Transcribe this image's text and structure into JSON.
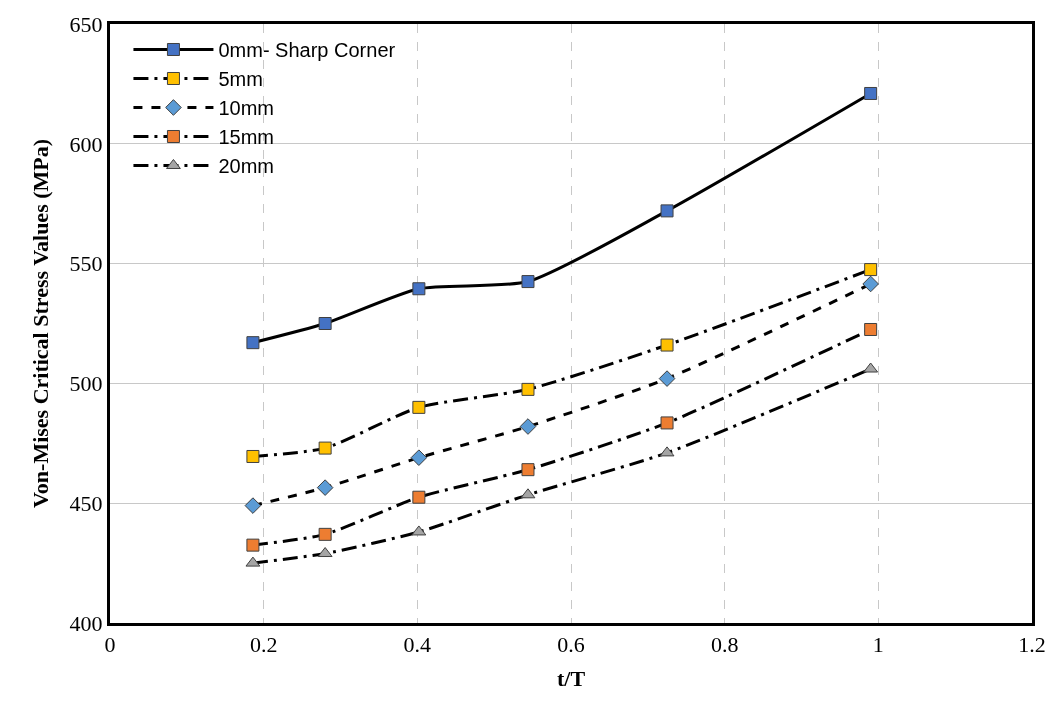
{
  "chart_data": {
    "type": "line",
    "xlabel": "t/T",
    "ylabel": "Von-Mises Critical Stress Values (MPa)",
    "x": [
      0.186,
      0.28,
      0.402,
      0.544,
      0.725,
      0.99
    ],
    "series": [
      {
        "name": "0mm- Sharp Corner",
        "color": "#4472c4",
        "marker": "square",
        "line_style": "solid",
        "values": [
          517,
          525,
          539.5,
          542.5,
          572,
          621
        ]
      },
      {
        "name": "5mm",
        "color": "#ffc000",
        "marker": "square",
        "line_style": "dashdot",
        "values": [
          469.5,
          473,
          490,
          497.5,
          516,
          547.5
        ]
      },
      {
        "name": "10mm",
        "color": "#5b9bd5",
        "marker": "diamond",
        "line_style": "dashed",
        "values": [
          449,
          456.5,
          469,
          482,
          502,
          541.5
        ]
      },
      {
        "name": "15mm",
        "color": "#ed7d31",
        "marker": "square",
        "line_style": "dashdot",
        "values": [
          432.5,
          437,
          452.5,
          464,
          483.5,
          522.5
        ]
      },
      {
        "name": "20mm",
        "color": "#a5a5a5",
        "marker": "triangle",
        "line_style": "dashdot",
        "values": [
          425,
          429,
          438,
          453.5,
          471,
          506
        ]
      }
    ],
    "xlim": [
      0,
      1.2
    ],
    "xticks": [
      0,
      0.2,
      0.4,
      0.6,
      0.8,
      1,
      1.2
    ],
    "ylim": [
      400,
      650
    ],
    "yticks": [
      400,
      450,
      500,
      550,
      600,
      650
    ],
    "grid": true,
    "legend": "top left"
  }
}
